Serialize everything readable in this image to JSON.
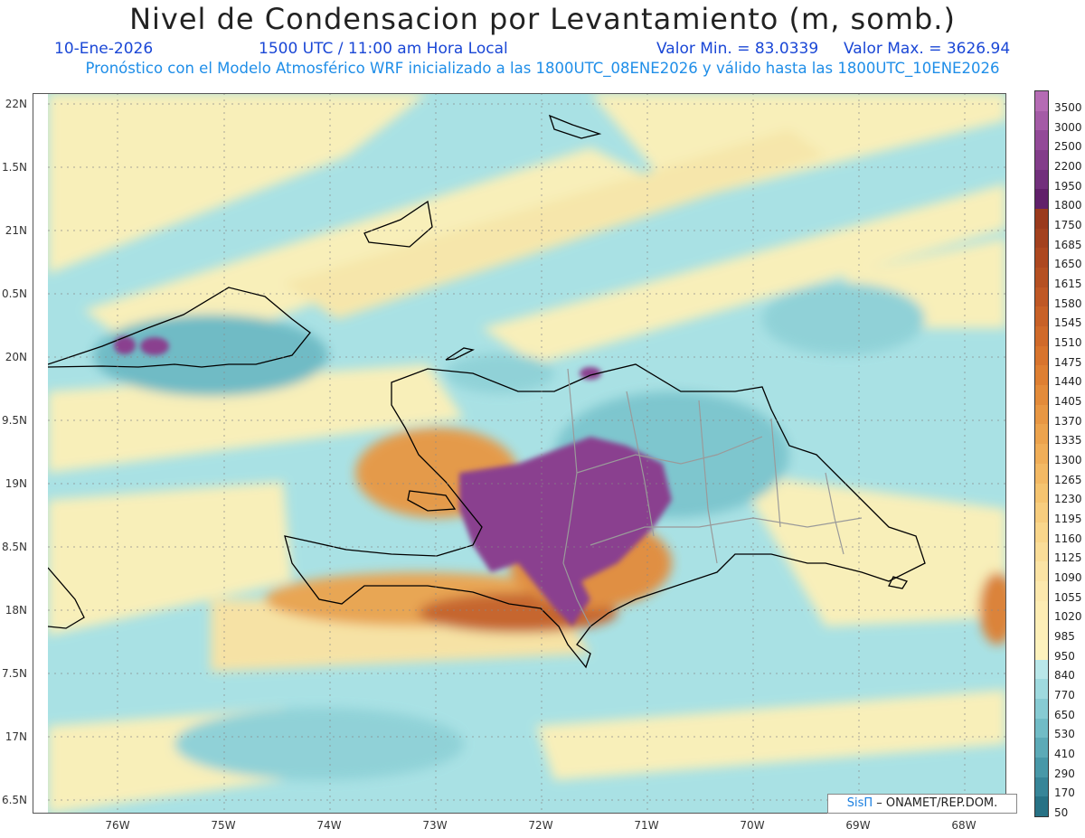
{
  "header": {
    "title": "Nivel de Condensacion por Levantamiento (m, somb.)",
    "date": "10-Ene-2026",
    "time": "1500 UTC / 11:00 am Hora Local",
    "min": "Valor Min. = 83.0339",
    "max": "Valor Max. = 3626.94",
    "model_line": "Pronóstico con el Modelo Atmosférico WRF inicializado a las 1800UTC_08ENE2026 y válido hasta las  1800UTC_10ENE2026"
  },
  "axes": {
    "y_labels": [
      "22N",
      "1.5N",
      "21N",
      "0.5N",
      "20N",
      "9.5N",
      "19N",
      "8.5N",
      "18N",
      "7.5N",
      "17N",
      "6.5N"
    ],
    "x_labels": [
      "76W",
      "75W",
      "74W",
      "73W",
      "72W",
      "71W",
      "70W",
      "69W",
      "68W"
    ]
  },
  "colorbar": {
    "labels": [
      "3500",
      "3000",
      "2500",
      "2200",
      "1950",
      "1800",
      "1750",
      "1685",
      "1650",
      "1615",
      "1580",
      "1545",
      "1510",
      "1475",
      "1440",
      "1405",
      "1370",
      "1335",
      "1300",
      "1265",
      "1230",
      "1195",
      "1160",
      "1125",
      "1090",
      "1055",
      "1020",
      "985",
      "950",
      "840",
      "770",
      "650",
      "530",
      "410",
      "290",
      "170",
      "50"
    ],
    "colors": [
      "#b56bb4",
      "#a45ba6",
      "#934a98",
      "#833d8a",
      "#72307c",
      "#61206a",
      "#9a3a1c",
      "#a3411e",
      "#ad4820",
      "#b55022",
      "#bf5825",
      "#c86127",
      "#d06a2a",
      "#d8742d",
      "#de7f32",
      "#e38b3a",
      "#e89743",
      "#eca34d",
      "#f0ae58",
      "#f3b964",
      "#f5c470",
      "#f7cd7e",
      "#f9d68b",
      "#fadd98",
      "#fbe3a4",
      "#fce8ad",
      "#fdecb3",
      "#fdefb8",
      "#fdf2bd",
      "#b9e7e9",
      "#9fdadf",
      "#87cbd3",
      "#71bcc6",
      "#5caab7",
      "#4898a8",
      "#378598",
      "#277285"
    ]
  },
  "credit": {
    "brand": "SisΠ",
    "text": "– ONAMET/REP.DOM."
  }
}
